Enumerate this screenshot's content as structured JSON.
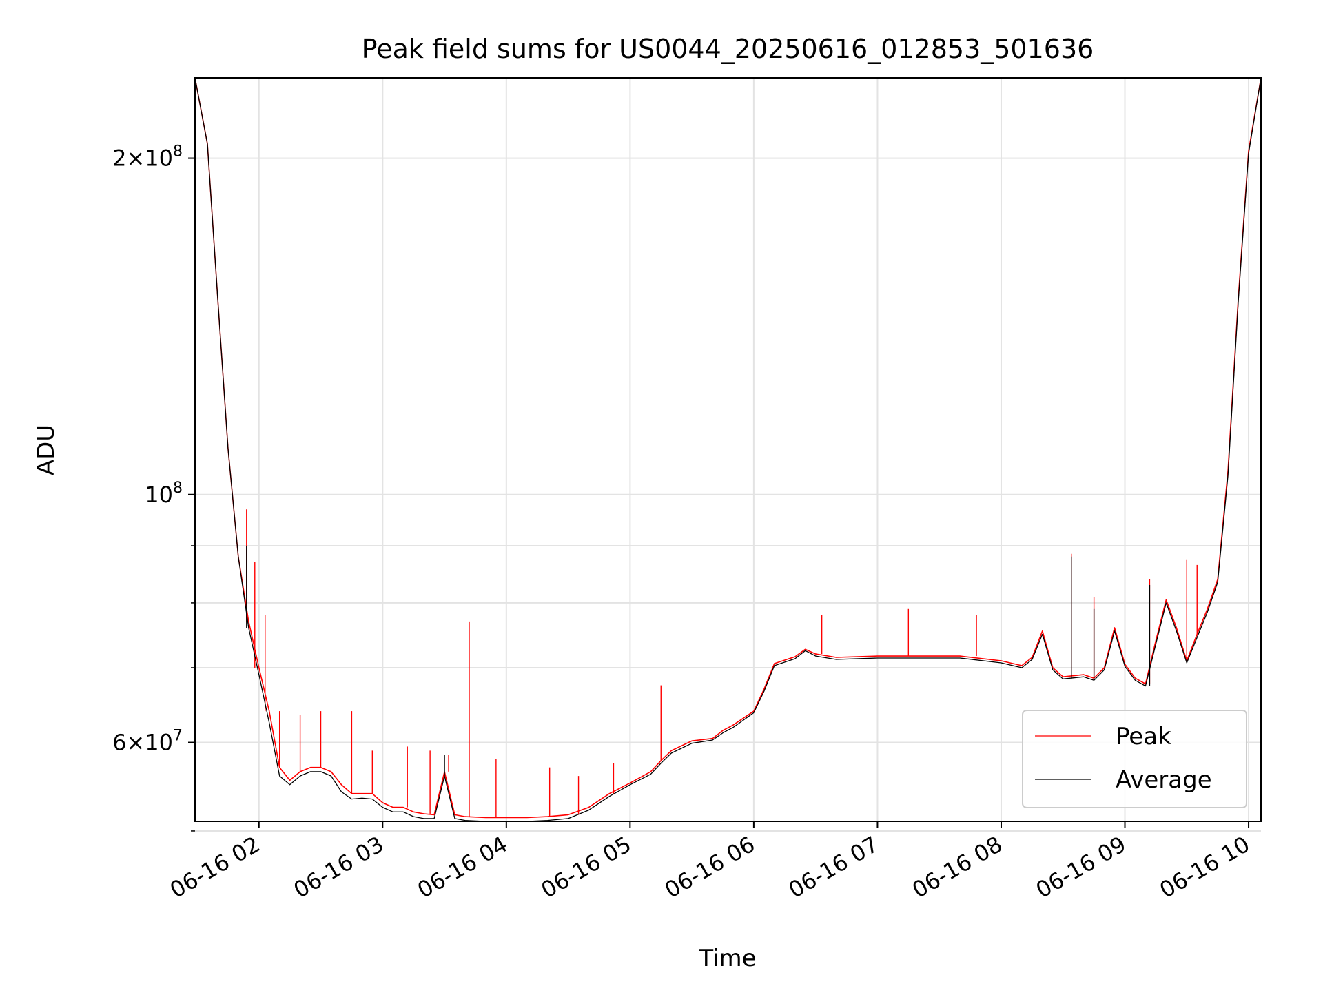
{
  "chart_data": {
    "type": "line",
    "title": "Peak field sums for US0044_20250616_012853_501636",
    "xlabel": "Time",
    "ylabel": "ADU",
    "xlim": [
      "2025-06-16 01:29",
      "2025-06-16 10:06"
    ],
    "ylim": [
      51000000,
      236000000
    ],
    "yscale": "log",
    "grid": true,
    "legend_position": "lower-right",
    "x_ticks": [
      {
        "value": "2025-06-16 02:00",
        "label": "06-16 02"
      },
      {
        "value": "2025-06-16 03:00",
        "label": "06-16 03"
      },
      {
        "value": "2025-06-16 04:00",
        "label": "06-16 04"
      },
      {
        "value": "2025-06-16 05:00",
        "label": "06-16 05"
      },
      {
        "value": "2025-06-16 06:00",
        "label": "06-16 06"
      },
      {
        "value": "2025-06-16 07:00",
        "label": "06-16 07"
      },
      {
        "value": "2025-06-16 08:00",
        "label": "06-16 08"
      },
      {
        "value": "2025-06-16 09:00",
        "label": "06-16 09"
      },
      {
        "value": "2025-06-16 10:00",
        "label": "06-16 10"
      }
    ],
    "y_ticks": [
      {
        "value": 60000000,
        "mantissa": "6",
        "exponent": "7"
      },
      {
        "value": 100000000,
        "mantissa": "",
        "exponent": "8"
      },
      {
        "value": 200000000,
        "mantissa": "2",
        "exponent": "8"
      }
    ],
    "y_minor_ticks": [
      50000000,
      70000000,
      80000000,
      90000000
    ],
    "series": [
      {
        "name": "Peak",
        "color": "#ff0000",
        "points": [
          [
            "2025-06-16 01:29",
            236000000
          ],
          [
            "2025-06-16 01:35",
            206000000
          ],
          [
            "2025-06-16 01:40",
            150000000
          ],
          [
            "2025-06-16 01:45",
            110000000
          ],
          [
            "2025-06-16 01:50",
            88000000
          ],
          [
            "2025-06-16 01:55",
            77000000
          ],
          [
            "2025-06-16 02:00",
            70000000
          ],
          [
            "2025-06-16 02:05",
            64000000
          ],
          [
            "2025-06-16 02:10",
            57000000
          ],
          [
            "2025-06-16 02:15",
            55500000
          ],
          [
            "2025-06-16 02:20",
            56500000
          ],
          [
            "2025-06-16 02:25",
            57000000
          ],
          [
            "2025-06-16 02:30",
            57000000
          ],
          [
            "2025-06-16 02:35",
            56500000
          ],
          [
            "2025-06-16 02:40",
            55000000
          ],
          [
            "2025-06-16 02:45",
            54000000
          ],
          [
            "2025-06-16 02:50",
            54000000
          ],
          [
            "2025-06-16 02:55",
            54000000
          ],
          [
            "2025-06-16 03:00",
            53000000
          ],
          [
            "2025-06-16 03:05",
            52500000
          ],
          [
            "2025-06-16 03:10",
            52500000
          ],
          [
            "2025-06-16 03:15",
            52000000
          ],
          [
            "2025-06-16 03:20",
            51800000
          ],
          [
            "2025-06-16 03:25",
            51700000
          ],
          [
            "2025-06-16 03:30",
            56500000
          ],
          [
            "2025-06-16 03:35",
            51700000
          ],
          [
            "2025-06-16 03:40",
            51500000
          ],
          [
            "2025-06-16 03:50",
            51400000
          ],
          [
            "2025-06-16 04:00",
            51400000
          ],
          [
            "2025-06-16 04:10",
            51400000
          ],
          [
            "2025-06-16 04:20",
            51500000
          ],
          [
            "2025-06-16 04:30",
            51700000
          ],
          [
            "2025-06-16 04:40",
            52500000
          ],
          [
            "2025-06-16 04:50",
            54000000
          ],
          [
            "2025-06-16 05:00",
            55200000
          ],
          [
            "2025-06-16 05:10",
            56500000
          ],
          [
            "2025-06-16 05:15",
            57800000
          ],
          [
            "2025-06-16 05:20",
            59000000
          ],
          [
            "2025-06-16 05:30",
            60200000
          ],
          [
            "2025-06-16 05:40",
            60500000
          ],
          [
            "2025-06-16 05:45",
            61500000
          ],
          [
            "2025-06-16 05:50",
            62200000
          ],
          [
            "2025-06-16 06:00",
            64000000
          ],
          [
            "2025-06-16 06:05",
            67000000
          ],
          [
            "2025-06-16 06:10",
            70600000
          ],
          [
            "2025-06-16 06:20",
            71600000
          ],
          [
            "2025-06-16 06:25",
            72700000
          ],
          [
            "2025-06-16 06:30",
            72000000
          ],
          [
            "2025-06-16 06:40",
            71500000
          ],
          [
            "2025-06-16 07:00",
            71700000
          ],
          [
            "2025-06-16 07:20",
            71700000
          ],
          [
            "2025-06-16 07:40",
            71700000
          ],
          [
            "2025-06-16 08:00",
            71000000
          ],
          [
            "2025-06-16 08:10",
            70300000
          ],
          [
            "2025-06-16 08:15",
            71500000
          ],
          [
            "2025-06-16 08:20",
            75500000
          ],
          [
            "2025-06-16 08:25",
            70000000
          ],
          [
            "2025-06-16 08:30",
            68700000
          ],
          [
            "2025-06-16 08:40",
            69000000
          ],
          [
            "2025-06-16 08:45",
            68500000
          ],
          [
            "2025-06-16 08:50",
            70000000
          ],
          [
            "2025-06-16 08:55",
            76000000
          ],
          [
            "2025-06-16 09:00",
            70500000
          ],
          [
            "2025-06-16 09:05",
            68500000
          ],
          [
            "2025-06-16 09:10",
            67700000
          ],
          [
            "2025-06-16 09:15",
            74000000
          ],
          [
            "2025-06-16 09:20",
            80500000
          ],
          [
            "2025-06-16 09:25",
            76000000
          ],
          [
            "2025-06-16 09:30",
            71000000
          ],
          [
            "2025-06-16 09:35",
            75000000
          ],
          [
            "2025-06-16 09:40",
            79000000
          ],
          [
            "2025-06-16 09:45",
            84000000
          ],
          [
            "2025-06-16 09:50",
            105000000
          ],
          [
            "2025-06-16 09:55",
            150000000
          ],
          [
            "2025-06-16 10:00",
            203000000
          ],
          [
            "2025-06-16 10:06",
            236000000
          ]
        ],
        "spikes": [
          [
            "2025-06-16 01:54",
            97000000
          ],
          [
            "2025-06-16 01:58",
            87000000
          ],
          [
            "2025-06-16 02:03",
            78000000
          ],
          [
            "2025-06-16 02:10",
            64000000
          ],
          [
            "2025-06-16 02:20",
            63500000
          ],
          [
            "2025-06-16 02:30",
            64000000
          ],
          [
            "2025-06-16 02:45",
            64000000
          ],
          [
            "2025-06-16 02:55",
            59000000
          ],
          [
            "2025-06-16 03:12",
            59500000
          ],
          [
            "2025-06-16 03:23",
            59000000
          ],
          [
            "2025-06-16 03:32",
            58500000
          ],
          [
            "2025-06-16 03:42",
            77000000
          ],
          [
            "2025-06-16 03:55",
            58000000
          ],
          [
            "2025-06-16 04:21",
            57000000
          ],
          [
            "2025-06-16 04:35",
            56000000
          ],
          [
            "2025-06-16 04:52",
            57500000
          ],
          [
            "2025-06-16 05:15",
            67500000
          ],
          [
            "2025-06-16 06:33",
            78000000
          ],
          [
            "2025-06-16 07:15",
            79000000
          ],
          [
            "2025-06-16 07:48",
            78000000
          ],
          [
            "2025-06-16 08:34",
            88500000
          ],
          [
            "2025-06-16 08:45",
            81000000
          ],
          [
            "2025-06-16 09:12",
            84000000
          ],
          [
            "2025-06-16 09:30",
            87500000
          ],
          [
            "2025-06-16 09:35",
            86500000
          ]
        ]
      },
      {
        "name": "Average",
        "color": "#000000",
        "points": [
          [
            "2025-06-16 01:29",
            236000000
          ],
          [
            "2025-06-16 01:35",
            206000000
          ],
          [
            "2025-06-16 01:40",
            150000000
          ],
          [
            "2025-06-16 01:45",
            110000000
          ],
          [
            "2025-06-16 01:50",
            88000000
          ],
          [
            "2025-06-16 01:55",
            76000000
          ],
          [
            "2025-06-16 02:00",
            69000000
          ],
          [
            "2025-06-16 02:05",
            62500000
          ],
          [
            "2025-06-16 02:10",
            56000000
          ],
          [
            "2025-06-16 02:15",
            55000000
          ],
          [
            "2025-06-16 02:20",
            56000000
          ],
          [
            "2025-06-16 02:25",
            56500000
          ],
          [
            "2025-06-16 02:30",
            56500000
          ],
          [
            "2025-06-16 02:35",
            56000000
          ],
          [
            "2025-06-16 02:40",
            54200000
          ],
          [
            "2025-06-16 02:45",
            53400000
          ],
          [
            "2025-06-16 02:50",
            53500000
          ],
          [
            "2025-06-16 02:55",
            53400000
          ],
          [
            "2025-06-16 03:00",
            52500000
          ],
          [
            "2025-06-16 03:05",
            52000000
          ],
          [
            "2025-06-16 03:10",
            52000000
          ],
          [
            "2025-06-16 03:15",
            51500000
          ],
          [
            "2025-06-16 03:20",
            51300000
          ],
          [
            "2025-06-16 03:25",
            51300000
          ],
          [
            "2025-06-16 03:30",
            56000000
          ],
          [
            "2025-06-16 03:35",
            51300000
          ],
          [
            "2025-06-16 03:40",
            51100000
          ],
          [
            "2025-06-16 03:50",
            51000000
          ],
          [
            "2025-06-16 04:00",
            51000000
          ],
          [
            "2025-06-16 04:10",
            51000000
          ],
          [
            "2025-06-16 04:20",
            51100000
          ],
          [
            "2025-06-16 04:30",
            51300000
          ],
          [
            "2025-06-16 04:40",
            52200000
          ],
          [
            "2025-06-16 04:50",
            53700000
          ],
          [
            "2025-06-16 05:00",
            55000000
          ],
          [
            "2025-06-16 05:10",
            56200000
          ],
          [
            "2025-06-16 05:15",
            57500000
          ],
          [
            "2025-06-16 05:20",
            58700000
          ],
          [
            "2025-06-16 05:30",
            59900000
          ],
          [
            "2025-06-16 05:40",
            60300000
          ],
          [
            "2025-06-16 05:45",
            61200000
          ],
          [
            "2025-06-16 05:50",
            61900000
          ],
          [
            "2025-06-16 06:00",
            63800000
          ],
          [
            "2025-06-16 06:05",
            66700000
          ],
          [
            "2025-06-16 06:10",
            70300000
          ],
          [
            "2025-06-16 06:20",
            71300000
          ],
          [
            "2025-06-16 06:25",
            72500000
          ],
          [
            "2025-06-16 06:30",
            71700000
          ],
          [
            "2025-06-16 06:40",
            71200000
          ],
          [
            "2025-06-16 07:00",
            71400000
          ],
          [
            "2025-06-16 07:20",
            71400000
          ],
          [
            "2025-06-16 07:40",
            71400000
          ],
          [
            "2025-06-16 08:00",
            70700000
          ],
          [
            "2025-06-16 08:10",
            70000000
          ],
          [
            "2025-06-16 08:15",
            71200000
          ],
          [
            "2025-06-16 08:20",
            75000000
          ],
          [
            "2025-06-16 08:25",
            69700000
          ],
          [
            "2025-06-16 08:30",
            68400000
          ],
          [
            "2025-06-16 08:40",
            68700000
          ],
          [
            "2025-06-16 08:45",
            68200000
          ],
          [
            "2025-06-16 08:50",
            69700000
          ],
          [
            "2025-06-16 08:55",
            75500000
          ],
          [
            "2025-06-16 09:00",
            70200000
          ],
          [
            "2025-06-16 09:05",
            68200000
          ],
          [
            "2025-06-16 09:10",
            67400000
          ],
          [
            "2025-06-16 09:15",
            73500000
          ],
          [
            "2025-06-16 09:20",
            80000000
          ],
          [
            "2025-06-16 09:25",
            75500000
          ],
          [
            "2025-06-16 09:30",
            70700000
          ],
          [
            "2025-06-16 09:35",
            74500000
          ],
          [
            "2025-06-16 09:40",
            78500000
          ],
          [
            "2025-06-16 09:45",
            83500000
          ],
          [
            "2025-06-16 09:50",
            104000000
          ],
          [
            "2025-06-16 09:55",
            149000000
          ],
          [
            "2025-06-16 10:00",
            202000000
          ],
          [
            "2025-06-16 10:06",
            236000000
          ]
        ],
        "spikes": [
          [
            "2025-06-16 01:54",
            90000000
          ],
          [
            "2025-06-16 03:30",
            58500000
          ],
          [
            "2025-06-16 08:34",
            88000000
          ],
          [
            "2025-06-16 08:45",
            79000000
          ],
          [
            "2025-06-16 09:12",
            83000000
          ]
        ]
      }
    ]
  }
}
